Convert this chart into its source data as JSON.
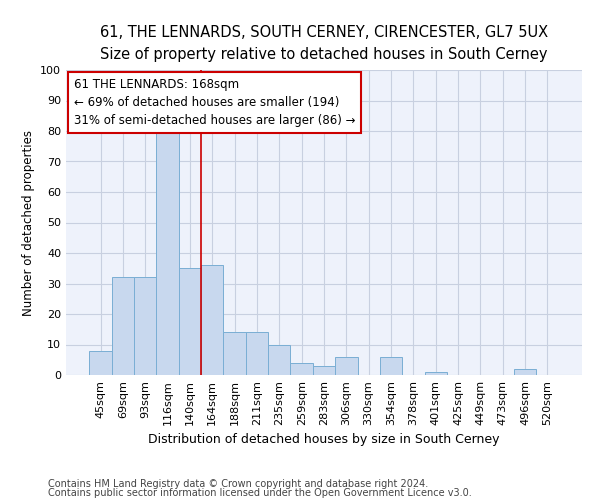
{
  "title1": "61, THE LENNARDS, SOUTH CERNEY, CIRENCESTER, GL7 5UX",
  "title2": "Size of property relative to detached houses in South Cerney",
  "xlabel": "Distribution of detached houses by size in South Cerney",
  "ylabel": "Number of detached properties",
  "categories": [
    "45sqm",
    "69sqm",
    "93sqm",
    "116sqm",
    "140sqm",
    "164sqm",
    "188sqm",
    "211sqm",
    "235sqm",
    "259sqm",
    "283sqm",
    "306sqm",
    "330sqm",
    "354sqm",
    "378sqm",
    "401sqm",
    "425sqm",
    "449sqm",
    "473sqm",
    "496sqm",
    "520sqm"
  ],
  "values": [
    8,
    32,
    32,
    80,
    35,
    36,
    14,
    14,
    10,
    4,
    3,
    6,
    0,
    6,
    0,
    1,
    0,
    0,
    0,
    2,
    0
  ],
  "bar_color": "#c8d8ee",
  "bar_edge_color": "#7aaed4",
  "grid_color": "#c8d0e0",
  "background_color": "#eef2fb",
  "annotation_text": "61 THE LENNARDS: 168sqm\n← 69% of detached houses are smaller (194)\n31% of semi-detached houses are larger (86) →",
  "footer1": "Contains HM Land Registry data © Crown copyright and database right 2024.",
  "footer2": "Contains public sector information licensed under the Open Government Licence v3.0.",
  "ylim": [
    0,
    100
  ],
  "red_line_color": "#cc0000",
  "annotation_box_color": "#cc0000",
  "title_fontsize": 10.5,
  "subtitle_fontsize": 9.5,
  "tick_fontsize": 8,
  "ylabel_fontsize": 8.5,
  "xlabel_fontsize": 9,
  "footer_fontsize": 7,
  "annot_fontsize": 8.5
}
